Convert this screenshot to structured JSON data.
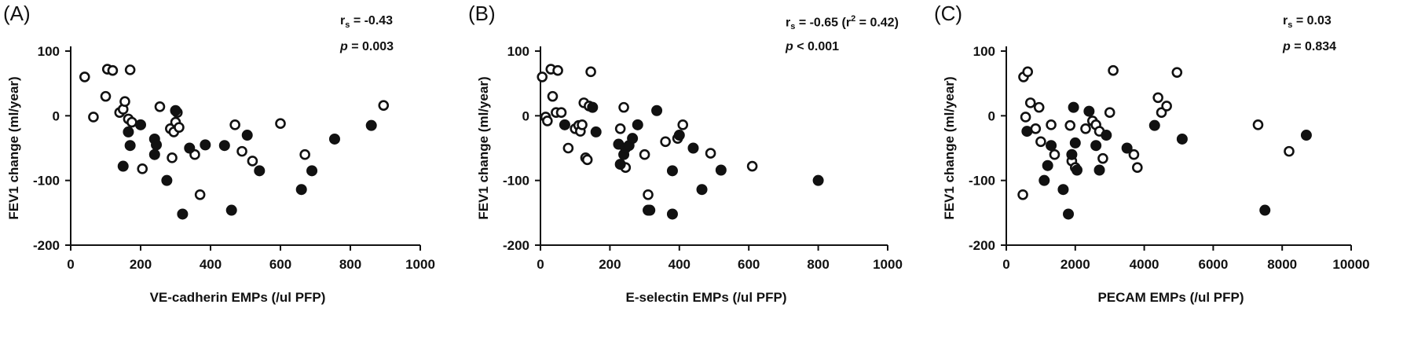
{
  "chart_data": [
    {
      "type": "scatter",
      "panel": "(A)",
      "xlabel": "VE-cadherin EMPs (/ul PFP)",
      "ylabel": "FEV1 change (ml/year)",
      "xlim": [
        0,
        1000
      ],
      "ylim": [
        -200,
        100
      ],
      "xticks": [
        0,
        200,
        400,
        600,
        800,
        1000
      ],
      "yticks": [
        -200,
        -100,
        0,
        100
      ],
      "stats": {
        "rs_label": "r",
        "rs_sub": "s",
        "rs_value": "= -0.43",
        "p_label": "p",
        "p_value": "= 0.003"
      },
      "series": [
        {
          "marker": "open",
          "points": [
            [
              40,
              60
            ],
            [
              65,
              -2
            ],
            [
              100,
              30
            ],
            [
              105,
              72
            ],
            [
              120,
              70
            ],
            [
              170,
              71
            ],
            [
              140,
              5
            ],
            [
              150,
              10
            ],
            [
              155,
              22
            ],
            [
              165,
              -5
            ],
            [
              175,
              -10
            ],
            [
              205,
              -82
            ],
            [
              255,
              14
            ],
            [
              285,
              -20
            ],
            [
              290,
              -65
            ],
            [
              295,
              -25
            ],
            [
              300,
              -10
            ],
            [
              305,
              5
            ],
            [
              310,
              -18
            ],
            [
              355,
              -60
            ],
            [
              370,
              -122
            ],
            [
              470,
              -14
            ],
            [
              490,
              -55
            ],
            [
              600,
              -12
            ],
            [
              520,
              -70
            ],
            [
              670,
              -60
            ],
            [
              895,
              16
            ]
          ]
        },
        {
          "marker": "filled",
          "points": [
            [
              150,
              -78
            ],
            [
              165,
              -25
            ],
            [
              170,
              -46
            ],
            [
              200,
              -14
            ],
            [
              240,
              -36
            ],
            [
              240,
              -60
            ],
            [
              245,
              -45
            ],
            [
              275,
              -100
            ],
            [
              300,
              8
            ],
            [
              320,
              -152
            ],
            [
              340,
              -50
            ],
            [
              385,
              -45
            ],
            [
              440,
              -46
            ],
            [
              460,
              -146
            ],
            [
              505,
              -30
            ],
            [
              540,
              -85
            ],
            [
              660,
              -114
            ],
            [
              690,
              -85
            ],
            [
              755,
              -36
            ],
            [
              860,
              -15
            ]
          ]
        }
      ]
    },
    {
      "type": "scatter",
      "panel": "(B)",
      "xlabel": "E-selectin EMPs (/ul PFP)",
      "ylabel": "FEV1 change (ml/year)",
      "xlim": [
        0,
        1000
      ],
      "ylim": [
        -200,
        100
      ],
      "xticks": [
        0,
        200,
        400,
        600,
        800,
        1000
      ],
      "yticks": [
        -200,
        -100,
        0,
        100
      ],
      "stats": {
        "rs_label": "r",
        "rs_sub": "s",
        "rs_value": "= -0.65 (r",
        "r2_sup": "2",
        "r2_value": " = 0.42)",
        "p_label": "p",
        "p_value": "< 0.001"
      },
      "series": [
        {
          "marker": "open",
          "points": [
            [
              5,
              60
            ],
            [
              15,
              -2
            ],
            [
              20,
              -8
            ],
            [
              30,
              72
            ],
            [
              35,
              30
            ],
            [
              45,
              5
            ],
            [
              50,
              70
            ],
            [
              60,
              5
            ],
            [
              80,
              -50
            ],
            [
              100,
              -20
            ],
            [
              110,
              -15
            ],
            [
              115,
              -24
            ],
            [
              120,
              -14
            ],
            [
              125,
              20
            ],
            [
              130,
              -65
            ],
            [
              135,
              -68
            ],
            [
              140,
              15
            ],
            [
              145,
              68
            ],
            [
              230,
              -20
            ],
            [
              240,
              13
            ],
            [
              245,
              -80
            ],
            [
              300,
              -60
            ],
            [
              310,
              -122
            ],
            [
              360,
              -40
            ],
            [
              395,
              -35
            ],
            [
              410,
              -14
            ],
            [
              490,
              -58
            ],
            [
              610,
              -78
            ]
          ]
        },
        {
          "marker": "filled",
          "points": [
            [
              70,
              -14
            ],
            [
              150,
              13
            ],
            [
              160,
              -25
            ],
            [
              225,
              -44
            ],
            [
              230,
              -75
            ],
            [
              240,
              -60
            ],
            [
              245,
              -50
            ],
            [
              255,
              -46
            ],
            [
              265,
              -35
            ],
            [
              280,
              -14
            ],
            [
              310,
              -146
            ],
            [
              315,
              -146
            ],
            [
              335,
              8
            ],
            [
              380,
              -85
            ],
            [
              380,
              -152
            ],
            [
              400,
              -30
            ],
            [
              440,
              -50
            ],
            [
              465,
              -114
            ],
            [
              520,
              -84
            ],
            [
              800,
              -100
            ]
          ]
        }
      ]
    },
    {
      "type": "scatter",
      "panel": "(C)",
      "xlabel": "PECAM EMPs (/ul PFP)",
      "ylabel": "FEV1 change (ml/year)",
      "xlim": [
        0,
        10000
      ],
      "ylim": [
        -200,
        100
      ],
      "xticks": [
        0,
        2000,
        4000,
        6000,
        8000,
        10000
      ],
      "yticks": [
        -200,
        -100,
        0,
        100
      ],
      "stats": {
        "rs_label": "r",
        "rs_sub": "s",
        "rs_value": "= 0.03",
        "p_label": "p",
        "p_value": "= 0.834"
      },
      "series": [
        {
          "marker": "open",
          "points": [
            [
              480,
              -122
            ],
            [
              500,
              60
            ],
            [
              560,
              -2
            ],
            [
              620,
              68
            ],
            [
              700,
              20
            ],
            [
              850,
              -20
            ],
            [
              950,
              13
            ],
            [
              1000,
              -40
            ],
            [
              1300,
              -14
            ],
            [
              1400,
              -60
            ],
            [
              1850,
              -15
            ],
            [
              1900,
              -70
            ],
            [
              2000,
              -80
            ],
            [
              2300,
              -20
            ],
            [
              2500,
              -8
            ],
            [
              2600,
              -14
            ],
            [
              2700,
              -24
            ],
            [
              2800,
              -66
            ],
            [
              3000,
              5
            ],
            [
              3100,
              70
            ],
            [
              3700,
              -60
            ],
            [
              3800,
              -80
            ],
            [
              4400,
              28
            ],
            [
              4500,
              5
            ],
            [
              4650,
              15
            ],
            [
              4950,
              67
            ],
            [
              7300,
              -14
            ],
            [
              8200,
              -55
            ]
          ]
        },
        {
          "marker": "filled",
          "points": [
            [
              600,
              -24
            ],
            [
              1100,
              -100
            ],
            [
              1200,
              -77
            ],
            [
              1300,
              -46
            ],
            [
              1650,
              -114
            ],
            [
              1800,
              -152
            ],
            [
              1900,
              -60
            ],
            [
              1950,
              13
            ],
            [
              2000,
              -42
            ],
            [
              2050,
              -84
            ],
            [
              2400,
              7
            ],
            [
              2600,
              -46
            ],
            [
              2700,
              -84
            ],
            [
              2900,
              -30
            ],
            [
              3500,
              -50
            ],
            [
              4300,
              -15
            ],
            [
              5100,
              -36
            ],
            [
              7500,
              -146
            ],
            [
              8700,
              -30
            ]
          ]
        }
      ]
    }
  ]
}
